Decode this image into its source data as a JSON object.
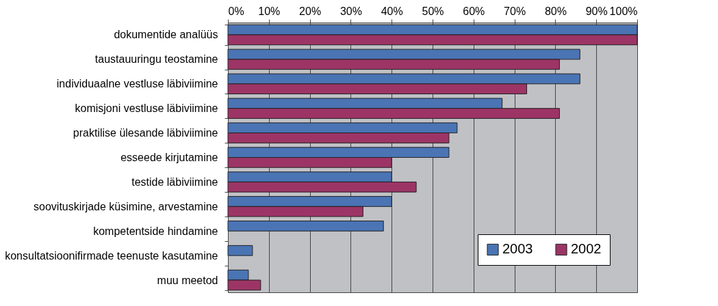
{
  "chart_data": {
    "type": "bar",
    "orientation": "horizontal",
    "categories": [
      "dokumentide analüüs",
      "taustauuringu teostamine",
      "individuaalne vestluse läbiviimine",
      "komisjoni vestluse läbiviimine",
      "praktilise ülesande läbiviimine",
      "esseede kirjutamine",
      "testide läbiviimine",
      "soovituskirjade küsimine, arvestamine",
      "kompetentside hindamine",
      "konsultatsioonifirmade teenuste kasutamine",
      "muu meetod"
    ],
    "series": [
      {
        "name": "2003",
        "color": "#4a74b4",
        "values": [
          100,
          86,
          86,
          67,
          56,
          54,
          40,
          40,
          38,
          6,
          5
        ]
      },
      {
        "name": "2002",
        "color": "#9c3566",
        "values": [
          100,
          81,
          73,
          81,
          54,
          40,
          46,
          33,
          null,
          null,
          8
        ]
      }
    ],
    "xlim": [
      0,
      100
    ],
    "xticks": [
      {
        "value": 0,
        "label": "0%"
      },
      {
        "value": 10,
        "label": "10%"
      },
      {
        "value": 20,
        "label": "20%"
      },
      {
        "value": 30,
        "label": "30%"
      },
      {
        "value": 40,
        "label": "40%"
      },
      {
        "value": 50,
        "label": "50%"
      },
      {
        "value": 60,
        "label": "60%"
      },
      {
        "value": 70,
        "label": "70%"
      },
      {
        "value": 80,
        "label": "80%"
      },
      {
        "value": 90,
        "label": "90%"
      },
      {
        "value": 100,
        "label": "100%"
      }
    ],
    "grid": "x",
    "legend": "bottom right"
  }
}
